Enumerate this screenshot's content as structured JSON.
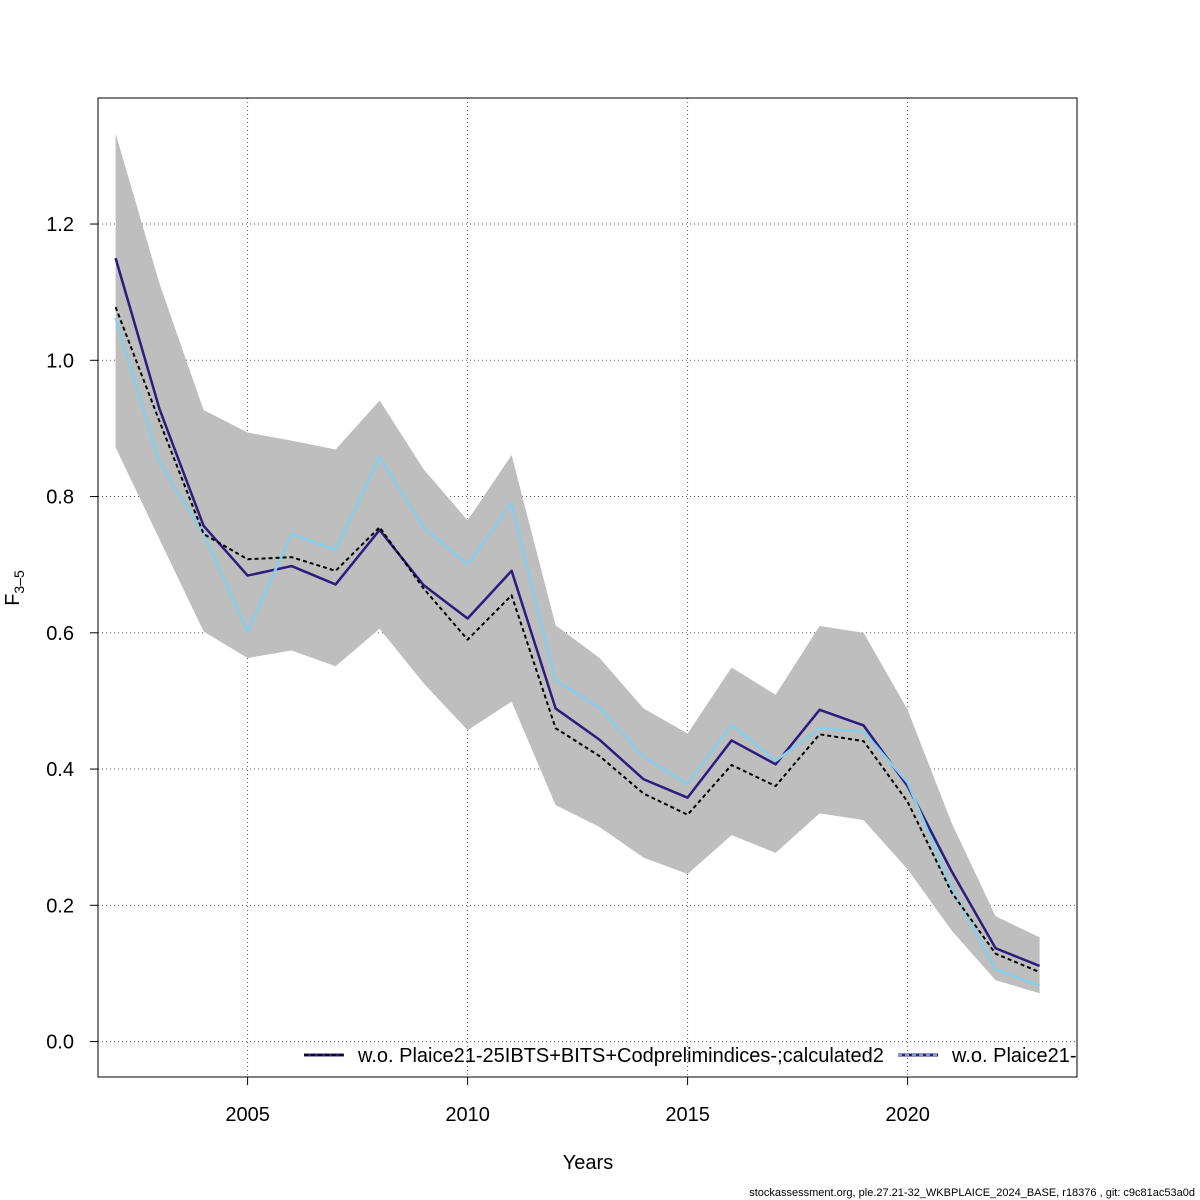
{
  "chart_data": {
    "type": "line",
    "xlabel": "Years",
    "ylabel_main": "F",
    "ylabel_sub": "3–5",
    "xlim": [
      2001.6,
      2023.85
    ],
    "ylim": [
      -0.052,
      1.385
    ],
    "x_ticks": [
      2005,
      2010,
      2015,
      2020
    ],
    "y_ticks": [
      0.0,
      0.2,
      0.4,
      0.6,
      0.8,
      1.0,
      1.2
    ],
    "y_tick_labels": [
      "0.0",
      "0.2",
      "0.4",
      "0.6",
      "0.8",
      "1.0",
      "1.2"
    ],
    "grid": true,
    "legend_placement": "bottom",
    "x": [
      2002,
      2003,
      2004,
      2005,
      2006,
      2007,
      2008,
      2009,
      2010,
      2011,
      2012,
      2013,
      2014,
      2015,
      2016,
      2017,
      2018,
      2019,
      2020,
      2021,
      2022,
      2023
    ],
    "ci_band": {
      "color": "#bebebe",
      "lower": [
        0.872,
        0.737,
        0.602,
        0.563,
        0.574,
        0.551,
        0.606,
        0.526,
        0.457,
        0.499,
        0.347,
        0.315,
        0.27,
        0.246,
        0.303,
        0.277,
        0.335,
        0.325,
        0.253,
        0.163,
        0.09,
        0.071
      ],
      "upper": [
        1.333,
        1.112,
        0.927,
        0.894,
        0.882,
        0.869,
        0.941,
        0.84,
        0.765,
        0.861,
        0.611,
        0.563,
        0.489,
        0.452,
        0.549,
        0.509,
        0.61,
        0.6,
        0.487,
        0.321,
        0.184,
        0.153
      ]
    },
    "series": [
      {
        "color": "#000000",
        "dash": "dashed",
        "values": [
          1.078,
          0.91,
          0.745,
          0.708,
          0.711,
          0.691,
          0.755,
          0.665,
          0.59,
          0.655,
          0.46,
          0.419,
          0.364,
          0.333,
          0.406,
          0.375,
          0.451,
          0.441,
          0.352,
          0.219,
          0.129,
          0.102
        ]
      },
      {
        "color": "#2b1d7d",
        "dash": "solid",
        "values": [
          1.15,
          0.928,
          0.757,
          0.684,
          0.698,
          0.671,
          0.751,
          0.67,
          0.621,
          0.691,
          0.489,
          0.443,
          0.385,
          0.358,
          0.442,
          0.407,
          0.487,
          0.464,
          0.375,
          0.25,
          0.137,
          0.111
        ]
      },
      {
        "color": "#87ceeb",
        "dash": "solid",
        "values": [
          1.062,
          0.85,
          0.745,
          0.602,
          0.745,
          0.722,
          0.858,
          0.755,
          0.7,
          0.79,
          0.53,
          0.49,
          0.418,
          0.378,
          0.465,
          0.412,
          0.46,
          0.455,
          0.38,
          0.226,
          0.106,
          0.082
        ]
      }
    ],
    "legend": [
      {
        "label": "w.o. Plaice21-25IBTS+BITS+Codprelimindices-;calculated2",
        "line_color": "#2b1d7d",
        "dash_color": "#000000"
      },
      {
        "label": "w.o. Plaice21-",
        "line_color": "#2b1d7d",
        "dash_color": "#87ceeb"
      }
    ]
  },
  "footer": {
    "text": "stockassessment.org, ple.27.21-32_WKBPLAICE_2024_BASE, r18376 , git: c9c81ac53a0d"
  }
}
